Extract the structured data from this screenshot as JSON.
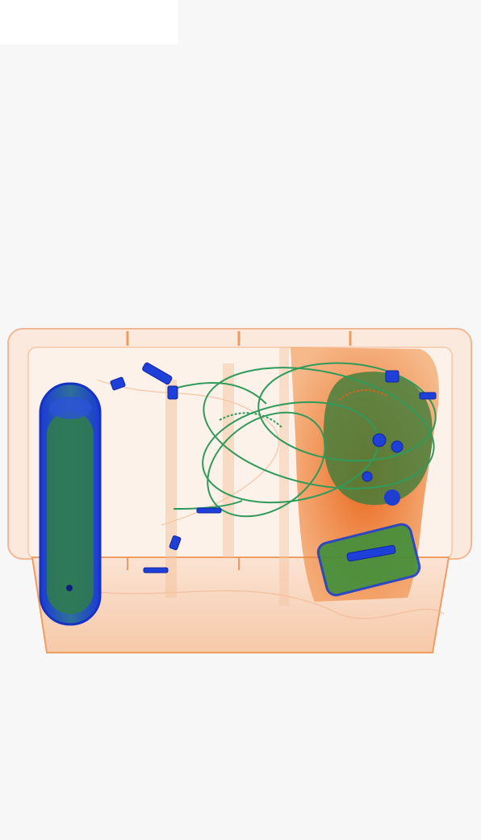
{
  "scene": {
    "type": "x-ray baggage scan",
    "colors": {
      "background": "#f7f7f7",
      "tray_orange": "#f2a36a",
      "organic_orange": "#e86a1c",
      "inorganic_green": "#3f8f3a",
      "wire_green": "#2f9b5a",
      "metal_blue": "#1f3fd9"
    }
  }
}
